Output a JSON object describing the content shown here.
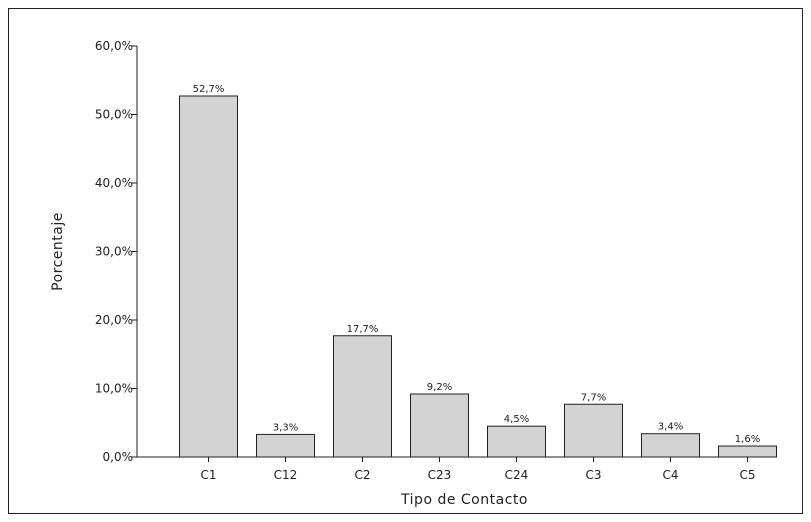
{
  "chart_data": {
    "type": "bar",
    "title": "",
    "xlabel": "Tipo de Contacto",
    "ylabel": "Porcentaje",
    "ylim": [
      0,
      60
    ],
    "yticks": [
      0,
      10,
      20,
      30,
      40,
      50,
      60
    ],
    "ytick_labels": [
      "0,0%",
      "10,0%",
      "20,0%",
      "30,0%",
      "40,0%",
      "50,0%",
      "60,0%"
    ],
    "categories": [
      "C1",
      "C12",
      "C2",
      "C23",
      "C24",
      "C3",
      "C4",
      "C5"
    ],
    "values": [
      52.7,
      3.3,
      17.7,
      9.2,
      4.5,
      7.7,
      3.4,
      1.6
    ],
    "value_labels": [
      "52,7%",
      "3,3%",
      "17,7%",
      "9,2%",
      "4,5%",
      "7,7%",
      "3,4%",
      "1,6%"
    ],
    "grid": false,
    "legend": "none",
    "bar_color": "#d3d3d3",
    "stroke_color": "#222222"
  }
}
